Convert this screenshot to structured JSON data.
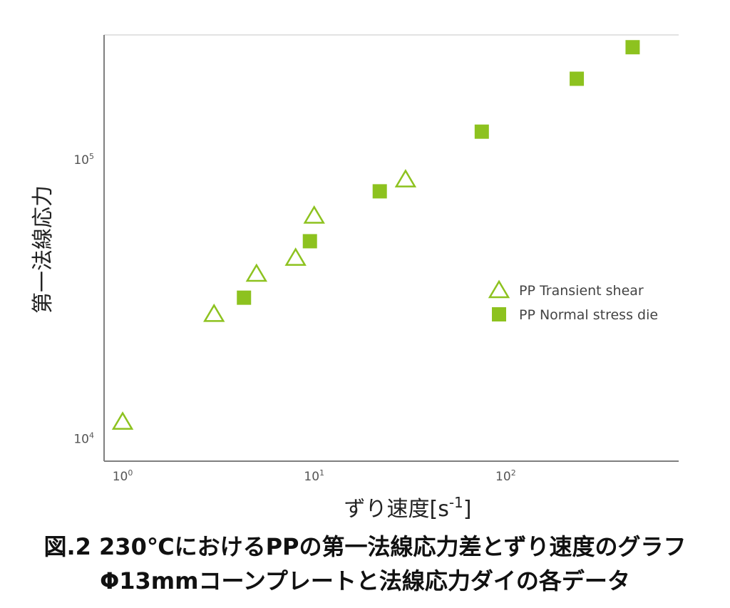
{
  "chart_data": {
    "type": "scatter",
    "xscale": "log",
    "yscale": "log",
    "xlim": [
      0.8,
      800
    ],
    "ylim": [
      8300,
      280000
    ],
    "x_ticks": [
      {
        "base": "10",
        "exp": "0",
        "value": 1
      },
      {
        "base": "10",
        "exp": "1",
        "value": 10
      },
      {
        "base": "10",
        "exp": "2",
        "value": 100
      }
    ],
    "y_ticks": [
      {
        "base": "10",
        "exp": "4",
        "value": 10000
      },
      {
        "base": "10",
        "exp": "5",
        "value": 100000
      }
    ],
    "xlabel_main": "ずり速度[s",
    "xlabel_sup": "-1",
    "xlabel_end": "]",
    "ylabel": "第一法線応力",
    "grid": false,
    "legend_position": "right-middle",
    "series": [
      {
        "name": "PP Transient shear",
        "marker": "triangle-open",
        "color": "#8dc21f",
        "points": [
          {
            "x": 1.0,
            "y": 11500
          },
          {
            "x": 3.0,
            "y": 28000
          },
          {
            "x": 5.0,
            "y": 39000
          },
          {
            "x": 8.0,
            "y": 44500
          },
          {
            "x": 10.0,
            "y": 63000
          },
          {
            "x": 30.0,
            "y": 85000
          }
        ]
      },
      {
        "name": "PP Normal stress die",
        "marker": "square-filled",
        "color": "#8dc21f",
        "points": [
          {
            "x": 4.3,
            "y": 32000
          },
          {
            "x": 9.5,
            "y": 51000
          },
          {
            "x": 22.0,
            "y": 77000
          },
          {
            "x": 75.0,
            "y": 126000
          },
          {
            "x": 235.0,
            "y": 195000
          },
          {
            "x": 460.0,
            "y": 253000
          }
        ]
      }
    ]
  },
  "caption": {
    "line1": "図.2 230℃におけるPPの第一法線応力差とずり速度のグラフ",
    "line2": "Φ13mmコーンプレートと法線応力ダイの各データ"
  }
}
